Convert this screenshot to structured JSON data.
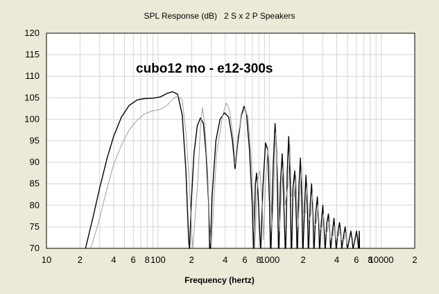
{
  "chart_data": {
    "type": "line",
    "title": "SPL Response (dB)   2 S x 2 P Speakers",
    "xlabel": "Frequency (hertz)",
    "ylabel": "",
    "x_scale": "log",
    "xlim": [
      10,
      20000
    ],
    "ylim": [
      70,
      120
    ],
    "grid": true,
    "annotation": "cubo12 mo - e12-300s",
    "x_ticks": [
      {
        "value": 10,
        "label": "10"
      },
      {
        "value": 20,
        "label": "2"
      },
      {
        "value": 40,
        "label": "4"
      },
      {
        "value": 60,
        "label": "6"
      },
      {
        "value": 80,
        "label": "8"
      },
      {
        "value": 100,
        "label": "100"
      },
      {
        "value": 200,
        "label": "2"
      },
      {
        "value": 400,
        "label": "4"
      },
      {
        "value": 600,
        "label": "6"
      },
      {
        "value": 800,
        "label": "8"
      },
      {
        "value": 1000,
        "label": "1000"
      },
      {
        "value": 2000,
        "label": "2"
      },
      {
        "value": 4000,
        "label": "4"
      },
      {
        "value": 6000,
        "label": "6"
      },
      {
        "value": 8000,
        "label": "8"
      },
      {
        "value": 10000,
        "label": "10000"
      },
      {
        "value": 20000,
        "label": "2"
      }
    ],
    "y_ticks": [
      70,
      75,
      80,
      85,
      90,
      95,
      100,
      105,
      110,
      115,
      120
    ],
    "series": [
      {
        "color": "#000000",
        "points": [
          [
            22.4,
            70
          ],
          [
            26,
            77
          ],
          [
            30,
            84
          ],
          [
            35,
            91
          ],
          [
            40,
            96
          ],
          [
            47,
            100.5
          ],
          [
            55,
            103.2
          ],
          [
            65,
            104.5
          ],
          [
            75,
            104.8
          ],
          [
            90,
            104.9
          ],
          [
            105,
            105.2
          ],
          [
            120,
            106
          ],
          [
            135,
            106.4
          ],
          [
            150,
            105.8
          ],
          [
            165,
            101
          ],
          [
            178,
            88
          ],
          [
            188,
            72
          ],
          [
            191,
            70
          ],
          [
            192,
            70
          ],
          [
            198,
            80
          ],
          [
            210,
            92
          ],
          [
            225,
            98.5
          ],
          [
            240,
            100.3
          ],
          [
            255,
            99
          ],
          [
            270,
            92
          ],
          [
            285,
            80
          ],
          [
            290,
            70
          ],
          [
            295,
            70
          ],
          [
            305,
            82
          ],
          [
            330,
            95
          ],
          [
            360,
            100
          ],
          [
            395,
            101.5
          ],
          [
            430,
            100.5
          ],
          [
            465,
            95
          ],
          [
            490,
            88.5
          ],
          [
            515,
            94
          ],
          [
            560,
            101
          ],
          [
            590,
            103
          ],
          [
            620,
            101.5
          ],
          [
            660,
            93
          ],
          [
            700,
            80
          ],
          [
            718,
            70
          ],
          [
            722,
            70
          ],
          [
            745,
            85
          ],
          [
            765,
            87.5
          ],
          [
            790,
            82
          ],
          [
            815,
            74
          ],
          [
            830,
            70
          ],
          [
            835,
            70
          ],
          [
            870,
            84
          ],
          [
            920,
            94.5
          ],
          [
            960,
            93
          ],
          [
            1000,
            80
          ],
          [
            1020,
            70
          ],
          [
            1030,
            70
          ],
          [
            1080,
            90
          ],
          [
            1120,
            99
          ],
          [
            1160,
            92
          ],
          [
            1200,
            70
          ],
          [
            1215,
            70
          ],
          [
            1250,
            85
          ],
          [
            1300,
            92
          ],
          [
            1350,
            78
          ],
          [
            1380,
            70
          ],
          [
            1395,
            70
          ],
          [
            1440,
            88
          ],
          [
            1485,
            96
          ],
          [
            1530,
            85
          ],
          [
            1560,
            70
          ],
          [
            1580,
            70
          ],
          [
            1620,
            84
          ],
          [
            1680,
            88
          ],
          [
            1740,
            76
          ],
          [
            1760,
            70
          ],
          [
            1780,
            70
          ],
          [
            1830,
            84
          ],
          [
            1890,
            91
          ],
          [
            1950,
            80
          ],
          [
            1980,
            70
          ],
          [
            2000,
            70
          ],
          [
            2060,
            80
          ],
          [
            2120,
            87
          ],
          [
            2180,
            80
          ],
          [
            2220,
            70
          ],
          [
            2240,
            70
          ],
          [
            2310,
            80
          ],
          [
            2380,
            85
          ],
          [
            2450,
            78
          ],
          [
            2490,
            70
          ],
          [
            2510,
            70
          ],
          [
            2590,
            78
          ],
          [
            2680,
            82
          ],
          [
            2760,
            76
          ],
          [
            2800,
            70
          ],
          [
            2820,
            70
          ],
          [
            2910,
            76
          ],
          [
            3000,
            80
          ],
          [
            3090,
            74
          ],
          [
            3140,
            70
          ],
          [
            3160,
            70
          ],
          [
            3260,
            76
          ],
          [
            3370,
            78
          ],
          [
            3460,
            74
          ],
          [
            3520,
            70
          ],
          [
            3540,
            70
          ],
          [
            3660,
            74
          ],
          [
            3780,
            77
          ],
          [
            3880,
            73
          ],
          [
            3950,
            70
          ],
          [
            3970,
            70
          ],
          [
            4110,
            74
          ],
          [
            4240,
            76
          ],
          [
            4360,
            73
          ],
          [
            4430,
            70
          ],
          [
            4450,
            70
          ],
          [
            4610,
            73
          ],
          [
            4760,
            75
          ],
          [
            4900,
            72
          ],
          [
            4970,
            70
          ],
          [
            5000,
            70
          ],
          [
            5180,
            72
          ],
          [
            5350,
            74
          ],
          [
            5500,
            72
          ],
          [
            5580,
            70
          ],
          [
            5610,
            70
          ],
          [
            5820,
            72
          ],
          [
            6010,
            74
          ],
          [
            6170,
            72
          ],
          [
            6260,
            70
          ],
          [
            6300,
            70
          ],
          [
            6360,
            74
          ],
          [
            6400,
            70
          ]
        ]
      },
      {
        "color": "#a0a0a0",
        "points": [
          [
            25,
            70
          ],
          [
            30,
            77
          ],
          [
            35,
            84
          ],
          [
            40,
            89.5
          ],
          [
            47,
            94
          ],
          [
            55,
            97.5
          ],
          [
            65,
            99.8
          ],
          [
            75,
            101.2
          ],
          [
            90,
            102
          ],
          [
            105,
            102.3
          ],
          [
            120,
            103.2
          ],
          [
            135,
            104.6
          ],
          [
            150,
            105.5
          ],
          [
            165,
            104.5
          ],
          [
            178,
            97
          ],
          [
            190,
            86
          ],
          [
            200,
            74
          ],
          [
            205,
            70
          ],
          [
            228,
            86
          ],
          [
            240,
            98
          ],
          [
            250,
            102.7
          ],
          [
            262,
            99
          ],
          [
            278,
            88
          ],
          [
            290,
            76
          ],
          [
            300,
            70
          ],
          [
            335,
            92
          ],
          [
            380,
            101
          ],
          [
            410,
            103.8
          ],
          [
            440,
            101.8
          ],
          [
            475,
            95
          ],
          [
            490,
            89.5
          ],
          [
            520,
            96
          ],
          [
            565,
            101
          ],
          [
            600,
            102.5
          ],
          [
            640,
            100.5
          ],
          [
            680,
            92
          ],
          [
            720,
            80
          ],
          [
            735,
            70
          ],
          [
            780,
            86
          ],
          [
            820,
            88
          ],
          [
            860,
            80
          ],
          [
            880,
            72
          ],
          [
            920,
            85
          ],
          [
            960,
            93
          ],
          [
            1010,
            88
          ],
          [
            1050,
            74
          ],
          [
            1090,
            83
          ],
          [
            1130,
            97
          ],
          [
            1180,
            88
          ],
          [
            1230,
            74
          ],
          [
            1280,
            84
          ],
          [
            1330,
            90
          ],
          [
            1380,
            80
          ],
          [
            1470,
            85
          ],
          [
            1520,
            94
          ],
          [
            1570,
            82
          ],
          [
            1660,
            82
          ],
          [
            1720,
            87
          ],
          [
            1790,
            75
          ],
          [
            1870,
            82
          ],
          [
            1930,
            89
          ],
          [
            2000,
            78
          ],
          [
            2100,
            78
          ],
          [
            2170,
            85
          ],
          [
            2240,
            76
          ],
          [
            2350,
            78
          ],
          [
            2420,
            83
          ],
          [
            2500,
            75
          ],
          [
            2630,
            76
          ],
          [
            2720,
            80
          ],
          [
            2810,
            74
          ],
          [
            2950,
            75
          ],
          [
            3040,
            78
          ],
          [
            3140,
            73
          ],
          [
            3300,
            74
          ],
          [
            3400,
            76
          ],
          [
            3500,
            72
          ],
          [
            3700,
            73
          ],
          [
            3810,
            75
          ],
          [
            3920,
            72
          ],
          [
            4150,
            73
          ],
          [
            4270,
            74
          ],
          [
            4400,
            72
          ],
          [
            4650,
            72
          ],
          [
            4800,
            73.5
          ],
          [
            4950,
            71
          ]
        ]
      }
    ]
  }
}
